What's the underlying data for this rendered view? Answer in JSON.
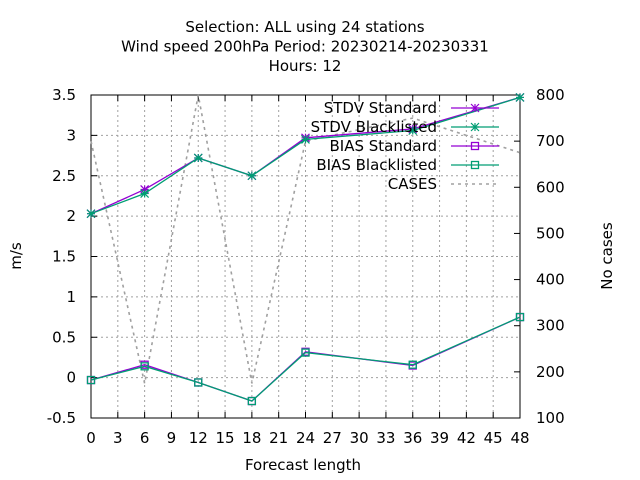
{
  "chart_data": {
    "type": "line",
    "title_lines": [
      "Selection: ALL using    24 stations",
      "Wind speed 200hPa   Period: 20230214-20230331",
      "Hours:  12"
    ],
    "xlabel": "Forecast length",
    "ylabel": "m/s",
    "y2label": "No cases",
    "xlim": [
      0,
      48
    ],
    "ylim": [
      -0.5,
      3.5
    ],
    "y2lim": [
      100,
      800
    ],
    "x_ticks": [
      0,
      3,
      6,
      9,
      12,
      15,
      18,
      21,
      24,
      27,
      30,
      33,
      36,
      39,
      42,
      45,
      48
    ],
    "y_ticks": [
      "-0.5",
      "0",
      "0.5",
      "1",
      "1.5",
      "2",
      "2.5",
      "3",
      "3.5"
    ],
    "y2_ticks": [
      100,
      200,
      300,
      400,
      500,
      600,
      700,
      800
    ],
    "grid": true,
    "legend_position": "top-right",
    "x": [
      0,
      6,
      12,
      18,
      24,
      36,
      48
    ],
    "series": [
      {
        "name": "STDV Standard",
        "axis": "y",
        "marker": "star",
        "color": "#9400d3",
        "values": [
          2.03,
          2.33,
          2.72,
          2.5,
          2.97,
          3.08,
          3.47
        ]
      },
      {
        "name": "STDV Blacklisted",
        "axis": "y",
        "marker": "star",
        "color": "#009e73",
        "values": [
          2.03,
          2.28,
          2.72,
          2.5,
          2.95,
          3.06,
          3.47
        ]
      },
      {
        "name": "BIAS Standard",
        "axis": "y",
        "marker": "square",
        "color": "#9400d3",
        "values": [
          -0.03,
          0.16,
          -0.06,
          -0.29,
          0.32,
          0.15,
          0.75
        ]
      },
      {
        "name": "BIAS Blacklisted",
        "axis": "y",
        "marker": "square",
        "color": "#009e73",
        "values": [
          -0.03,
          0.14,
          -0.06,
          -0.29,
          0.31,
          0.16,
          0.75
        ]
      },
      {
        "name": "CASES",
        "axis": "y2",
        "marker": "none",
        "color": "#a0a0a0",
        "dashed": true,
        "values": [
          700,
          175,
          800,
          175,
          700,
          750,
          675
        ]
      }
    ]
  }
}
